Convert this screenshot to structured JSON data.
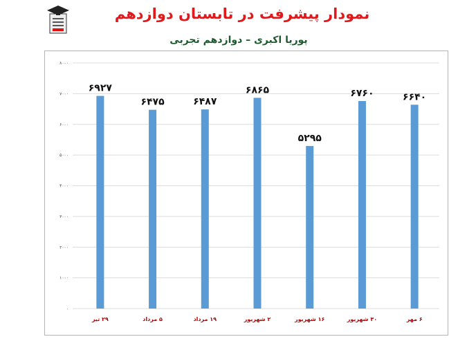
{
  "page": {
    "title": "نمودار پیشرفت در تابستان دوازدهم",
    "subtitle": "پوریا اکبری – دوازدهم تجربی"
  },
  "colors": {
    "title": "#e0191d",
    "subtitle": "#1d5a2e",
    "bar": "#5b9bd5",
    "gridline": "#dcdcdc",
    "xlabel": "#c00000"
  },
  "logo": {
    "icon": "graduate-logo-icon"
  },
  "chart_data": {
    "type": "bar",
    "categories": [
      "۲۹ تیر",
      "۵ مرداد",
      "۱۹ مرداد",
      "۲ شهریور",
      "۱۶ شهریور",
      "۳۰ شهریور",
      "۶ مهر"
    ],
    "series": [
      {
        "values": [
          6927,
          6475,
          6487,
          6865,
          5295,
          6760,
          6640
        ]
      }
    ],
    "data_labels": [
      "۶۹۲۷",
      "۶۴۷۵",
      "۶۴۸۷",
      "۶۸۶۵",
      "۵۲۹۵",
      "۶۷۶۰",
      "۶۶۴۰"
    ],
    "yticks": [
      0,
      1000,
      2000,
      3000,
      4000,
      5000,
      6000,
      7000,
      8000
    ],
    "ytick_labels": [
      "۰",
      "۱۰۰۰",
      "۲۰۰۰",
      "۳۰۰۰",
      "۴۰۰۰",
      "۵۰۰۰",
      "۶۰۰۰",
      "۷۰۰۰",
      "۸۰۰۰"
    ],
    "ylim": [
      0,
      8000
    ],
    "grid": true,
    "legend": "none"
  }
}
